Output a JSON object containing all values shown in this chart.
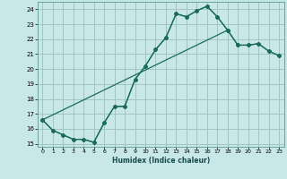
{
  "xlabel": "Humidex (Indice chaleur)",
  "bg_color": "#c8e8e8",
  "grid_color": "#9dbfbf",
  "line_color": "#1a6b5a",
  "xlim": [
    -0.5,
    23.5
  ],
  "ylim": [
    14.8,
    24.5
  ],
  "xticks": [
    0,
    1,
    2,
    3,
    4,
    5,
    6,
    7,
    8,
    9,
    10,
    11,
    12,
    13,
    14,
    15,
    16,
    17,
    18,
    19,
    20,
    21,
    22,
    23
  ],
  "yticks": [
    15,
    16,
    17,
    18,
    19,
    20,
    21,
    22,
    23,
    24
  ],
  "line1_x": [
    0,
    1,
    2,
    3,
    4,
    5,
    6,
    7,
    8,
    9,
    10,
    11,
    12,
    13,
    14,
    15,
    16,
    17,
    18
  ],
  "line1_y": [
    16.6,
    15.9,
    15.6,
    15.3,
    15.3,
    15.1,
    16.4,
    17.5,
    17.5,
    19.3,
    20.2,
    21.3,
    22.1,
    23.7,
    23.5,
    23.9,
    24.2,
    23.5,
    22.6
  ],
  "line2_x": [
    0,
    18,
    19,
    20,
    21,
    22,
    23
  ],
  "line2_y": [
    16.6,
    22.6,
    21.6,
    21.6,
    21.7,
    21.2,
    20.9
  ],
  "line3_x": [
    0,
    1,
    2,
    3,
    4,
    5,
    6,
    7,
    8,
    9,
    10,
    11,
    12,
    13,
    14,
    15,
    16,
    17,
    18,
    19,
    20,
    21,
    22,
    23
  ],
  "line3_y": [
    16.6,
    15.9,
    15.6,
    15.3,
    15.3,
    15.1,
    16.4,
    17.5,
    17.5,
    19.3,
    20.2,
    21.3,
    22.1,
    23.7,
    23.5,
    23.9,
    24.2,
    23.5,
    22.6,
    21.6,
    21.6,
    21.7,
    21.2,
    20.9
  ]
}
